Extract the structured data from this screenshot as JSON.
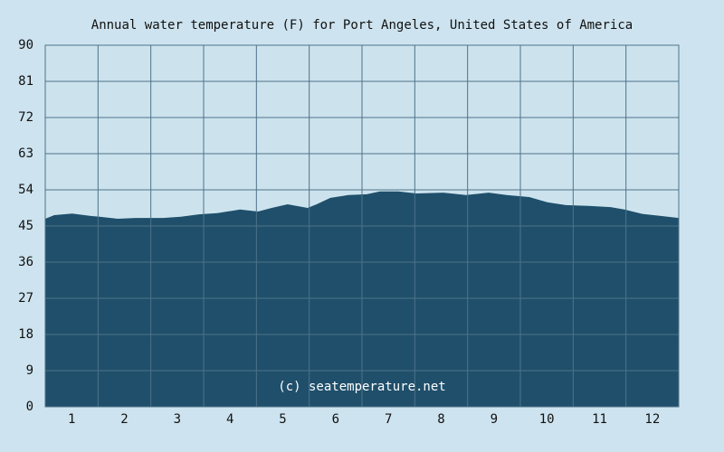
{
  "chart_data": {
    "type": "area",
    "title": "Annual water temperature (F) for Port Angeles, United States of America",
    "watermark": "(c) seatemperature.net",
    "x": [
      0.5,
      0.67,
      1.01,
      1.36,
      1.53,
      1.87,
      2.21,
      2.73,
      3.07,
      3.41,
      3.76,
      4.19,
      4.53,
      4.79,
      5.09,
      5.47,
      5.64,
      5.9,
      6.24,
      6.59,
      6.84,
      7.19,
      7.53,
      8.04,
      8.47,
      8.9,
      9.24,
      9.67,
      10.01,
      10.36,
      10.79,
      11.21,
      11.47,
      11.81,
      12.16,
      12.5
    ],
    "values": [
      46.8,
      47.7,
      48.1,
      47.5,
      47.3,
      46.8,
      47.0,
      47.0,
      47.3,
      47.9,
      48.2,
      49.1,
      48.6,
      49.5,
      50.4,
      49.5,
      50.4,
      52.0,
      52.7,
      52.9,
      53.6,
      53.6,
      53.1,
      53.3,
      52.7,
      53.3,
      52.7,
      52.2,
      50.9,
      50.2,
      50.0,
      49.7,
      49.1,
      48.0,
      47.5,
      47.0
    ],
    "color": "#1f4f6b",
    "xlim": [
      0.5,
      12.5
    ],
    "xticks": [
      1,
      2,
      3,
      4,
      5,
      6,
      7,
      8,
      9,
      10,
      11,
      12
    ],
    "ylim": [
      0,
      90
    ],
    "yticks": [
      0,
      9,
      18,
      27,
      36,
      45,
      54,
      63,
      72,
      81,
      90
    ],
    "grid": true
  }
}
